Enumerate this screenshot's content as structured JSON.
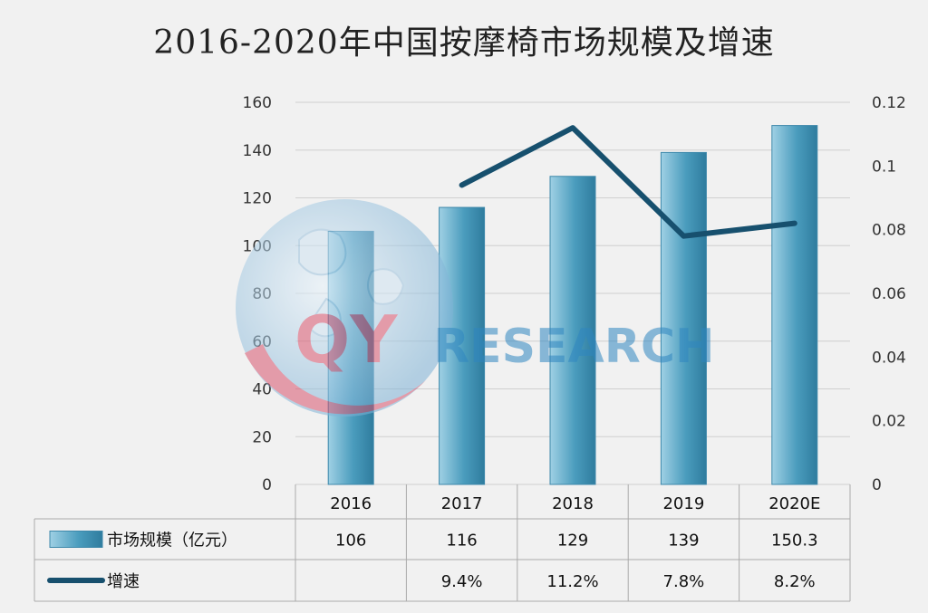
{
  "chart_data": {
    "type": "bar",
    "title": "2016-2020年中国按摩椅市场规模及增速",
    "categories": [
      "2016",
      "2017",
      "2018",
      "2019",
      "2020E"
    ],
    "series": [
      {
        "name": "市场规模（亿元）",
        "type": "bar",
        "axis": "left",
        "values": [
          106,
          116,
          129,
          139,
          150.3
        ],
        "color": "#4a9cbd"
      },
      {
        "name": "增速",
        "type": "line",
        "axis": "right",
        "values": [
          null,
          0.094,
          0.112,
          0.078,
          0.082
        ],
        "color": "#17506e"
      }
    ],
    "y_left": {
      "min": 0,
      "max": 160,
      "ticks": [
        "0",
        "20",
        "40",
        "60",
        "80",
        "100",
        "120",
        "140",
        "160"
      ]
    },
    "y_right": {
      "min": 0,
      "max": 0.12,
      "ticks": [
        "0",
        "0.02",
        "0.04",
        "0.06",
        "0.08",
        "0.1",
        "0.12"
      ]
    },
    "grid": true,
    "legend": "table-bottom"
  },
  "data_table": {
    "rows": [
      {
        "label": "市场规模（亿元）",
        "cells": [
          "106",
          "116",
          "129",
          "139",
          "150.3"
        ]
      },
      {
        "label": "增速",
        "cells": [
          "",
          "9.4%",
          "11.2%",
          "7.8%",
          "8.2%"
        ]
      }
    ]
  },
  "watermark": {
    "text_a": "QY",
    "text_b": "RESEARCH"
  }
}
